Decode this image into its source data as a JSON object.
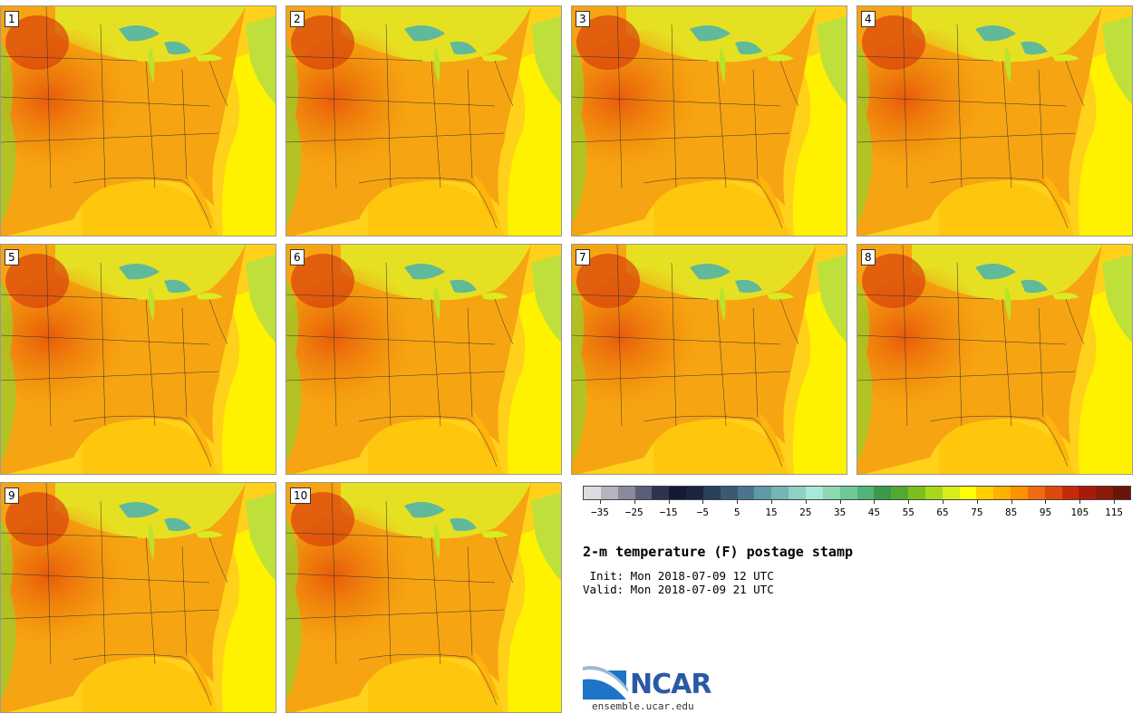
{
  "panels": [
    {
      "label": "1"
    },
    {
      "label": "2"
    },
    {
      "label": "3"
    },
    {
      "label": "4"
    },
    {
      "label": "5"
    },
    {
      "label": "6"
    },
    {
      "label": "7"
    },
    {
      "label": "8"
    },
    {
      "label": "9"
    },
    {
      "label": "10"
    }
  ],
  "colorbar": {
    "colors": [
      "#dcdce0",
      "#b4b4c0",
      "#8a8a9c",
      "#5a5f78",
      "#2e3350",
      "#141a33",
      "#1a2440",
      "#28405a",
      "#3a5a72",
      "#4a7590",
      "#5e9aa5",
      "#72b5b5",
      "#8fd0c5",
      "#a8e8d8",
      "#8cd8b0",
      "#6ec898",
      "#4fb57a",
      "#3b9a4a",
      "#52a832",
      "#7bbf1e",
      "#a8d81a",
      "#d8ee1a",
      "#ffff00",
      "#ffd000",
      "#ffb000",
      "#ff9000",
      "#f06b10",
      "#dd4a0c",
      "#c82a08",
      "#aa1a0a",
      "#8a1a0a",
      "#6a140a"
    ],
    "tick_labels": [
      "−35",
      "−25",
      "−15",
      "−5",
      "5",
      "15",
      "25",
      "35",
      "45",
      "55",
      "65",
      "75",
      "85",
      "95",
      "105",
      "115"
    ],
    "tick_values": [
      -35,
      -25,
      -15,
      -5,
      5,
      15,
      25,
      35,
      45,
      55,
      65,
      75,
      85,
      95,
      105,
      115
    ],
    "vmin": -40,
    "vmax": 120
  },
  "title": "2-m temperature (F) postage stamp",
  "init_line": " Init: Mon 2018-07-09 12 UTC",
  "valid_line": "Valid: Mon 2018-07-09 21 UTC",
  "logo_text": "NCAR",
  "site_url": "ensemble.ucar.edu"
}
